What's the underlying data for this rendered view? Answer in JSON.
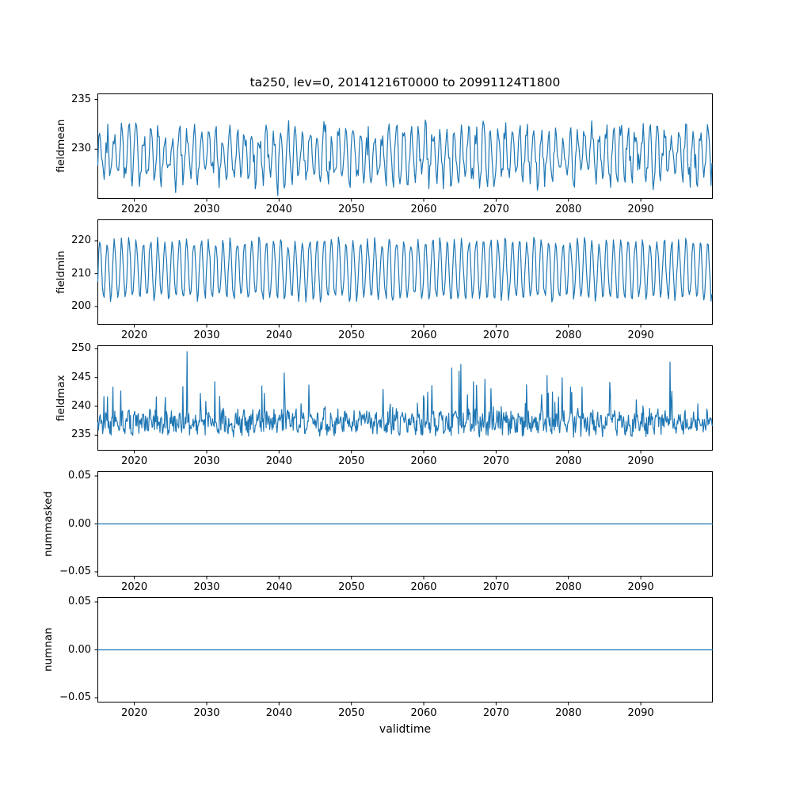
{
  "figure": {
    "title": "ta250, lev=0, 20141216T0000 to 20991124T1800",
    "xlabel": "validtime",
    "line_color": "#1f77b4",
    "background": "#ffffff"
  },
  "chart_data": [
    {
      "type": "line",
      "name": "fieldmean",
      "ylabel": "fieldmean",
      "x_range": [
        2014.96,
        2099.9
      ],
      "xlim": [
        2014.9,
        2099.95
      ],
      "xticks": [
        2020,
        2030,
        2040,
        2050,
        2060,
        2070,
        2080,
        2090
      ],
      "ylim": [
        225.0,
        235.6
      ],
      "yticks": [
        {
          "v": 230,
          "label": "230"
        },
        {
          "v": 235,
          "label": "235"
        }
      ],
      "legend": "none",
      "grid": false,
      "signal": {
        "kind": "seasonal",
        "baseline": 229.4,
        "season_amp": 2.3,
        "noise_amp": 1.3,
        "spike_prob": 0.05,
        "spike_amp": 2.4,
        "spike_pow": 1,
        "spike_dir": "both",
        "points_per_year": 8,
        "seed": 3
      }
    },
    {
      "type": "line",
      "name": "fieldmin",
      "ylabel": "fieldmin",
      "x_range": [
        2014.96,
        2099.9
      ],
      "xlim": [
        2014.9,
        2099.95
      ],
      "xticks": [
        2020,
        2030,
        2040,
        2050,
        2060,
        2070,
        2080,
        2090
      ],
      "ylim": [
        194.5,
        226.5
      ],
      "yticks": [
        {
          "v": 200,
          "label": "200"
        },
        {
          "v": 210,
          "label": "210"
        },
        {
          "v": 220,
          "label": "220"
        }
      ],
      "legend": "none",
      "grid": false,
      "signal": {
        "kind": "seasonal",
        "baseline": 211.2,
        "season_amp": 8.6,
        "noise_amp": 1.6,
        "spike_prob": 0.03,
        "spike_amp": 2.6,
        "spike_pow": 1,
        "spike_dir": "both",
        "points_per_year": 8,
        "seed": 7
      }
    },
    {
      "type": "line",
      "name": "fieldmax",
      "ylabel": "fieldmax",
      "x_range": [
        2014.96,
        2099.9
      ],
      "xlim": [
        2014.9,
        2099.95
      ],
      "xticks": [
        2020,
        2030,
        2040,
        2050,
        2060,
        2070,
        2080,
        2090
      ],
      "ylim": [
        232.3,
        250.6
      ],
      "yticks": [
        {
          "v": 235,
          "label": "235"
        },
        {
          "v": 240,
          "label": "240"
        },
        {
          "v": 245,
          "label": "245"
        },
        {
          "v": 250,
          "label": "250"
        }
      ],
      "legend": "none",
      "grid": false,
      "signal": {
        "kind": "seasonal",
        "baseline": 237.2,
        "season_amp": 0.8,
        "noise_amp": 1.8,
        "spike_prob": 0.12,
        "spike_amp": 10.5,
        "spike_pow": 2,
        "spike_dir": "up",
        "points_per_year": 12,
        "seed": 13
      }
    },
    {
      "type": "line",
      "name": "nummasked",
      "ylabel": "nummasked",
      "x_range": [
        2014.96,
        2099.9
      ],
      "xlim": [
        2014.9,
        2099.95
      ],
      "xticks": [
        2020,
        2030,
        2040,
        2050,
        2060,
        2070,
        2080,
        2090
      ],
      "ylim": [
        -0.055,
        0.055
      ],
      "yticks": [
        {
          "v": 0.05,
          "label": "0.05"
        },
        {
          "v": 0.0,
          "label": "0.00"
        },
        {
          "v": -0.05,
          "label": "−0.05"
        }
      ],
      "legend": "none",
      "grid": false,
      "signal": {
        "kind": "constant",
        "value": 0.0
      }
    },
    {
      "type": "line",
      "name": "numnan",
      "ylabel": "numnan",
      "x_range": [
        2014.96,
        2099.9
      ],
      "xlim": [
        2014.9,
        2099.95
      ],
      "xticks": [
        2020,
        2030,
        2040,
        2050,
        2060,
        2070,
        2080,
        2090
      ],
      "ylim": [
        -0.055,
        0.055
      ],
      "yticks": [
        {
          "v": 0.05,
          "label": "0.05"
        },
        {
          "v": 0.0,
          "label": "0.00"
        },
        {
          "v": -0.05,
          "label": "−0.05"
        }
      ],
      "legend": "none",
      "grid": false,
      "signal": {
        "kind": "constant",
        "value": 0.0
      }
    }
  ]
}
